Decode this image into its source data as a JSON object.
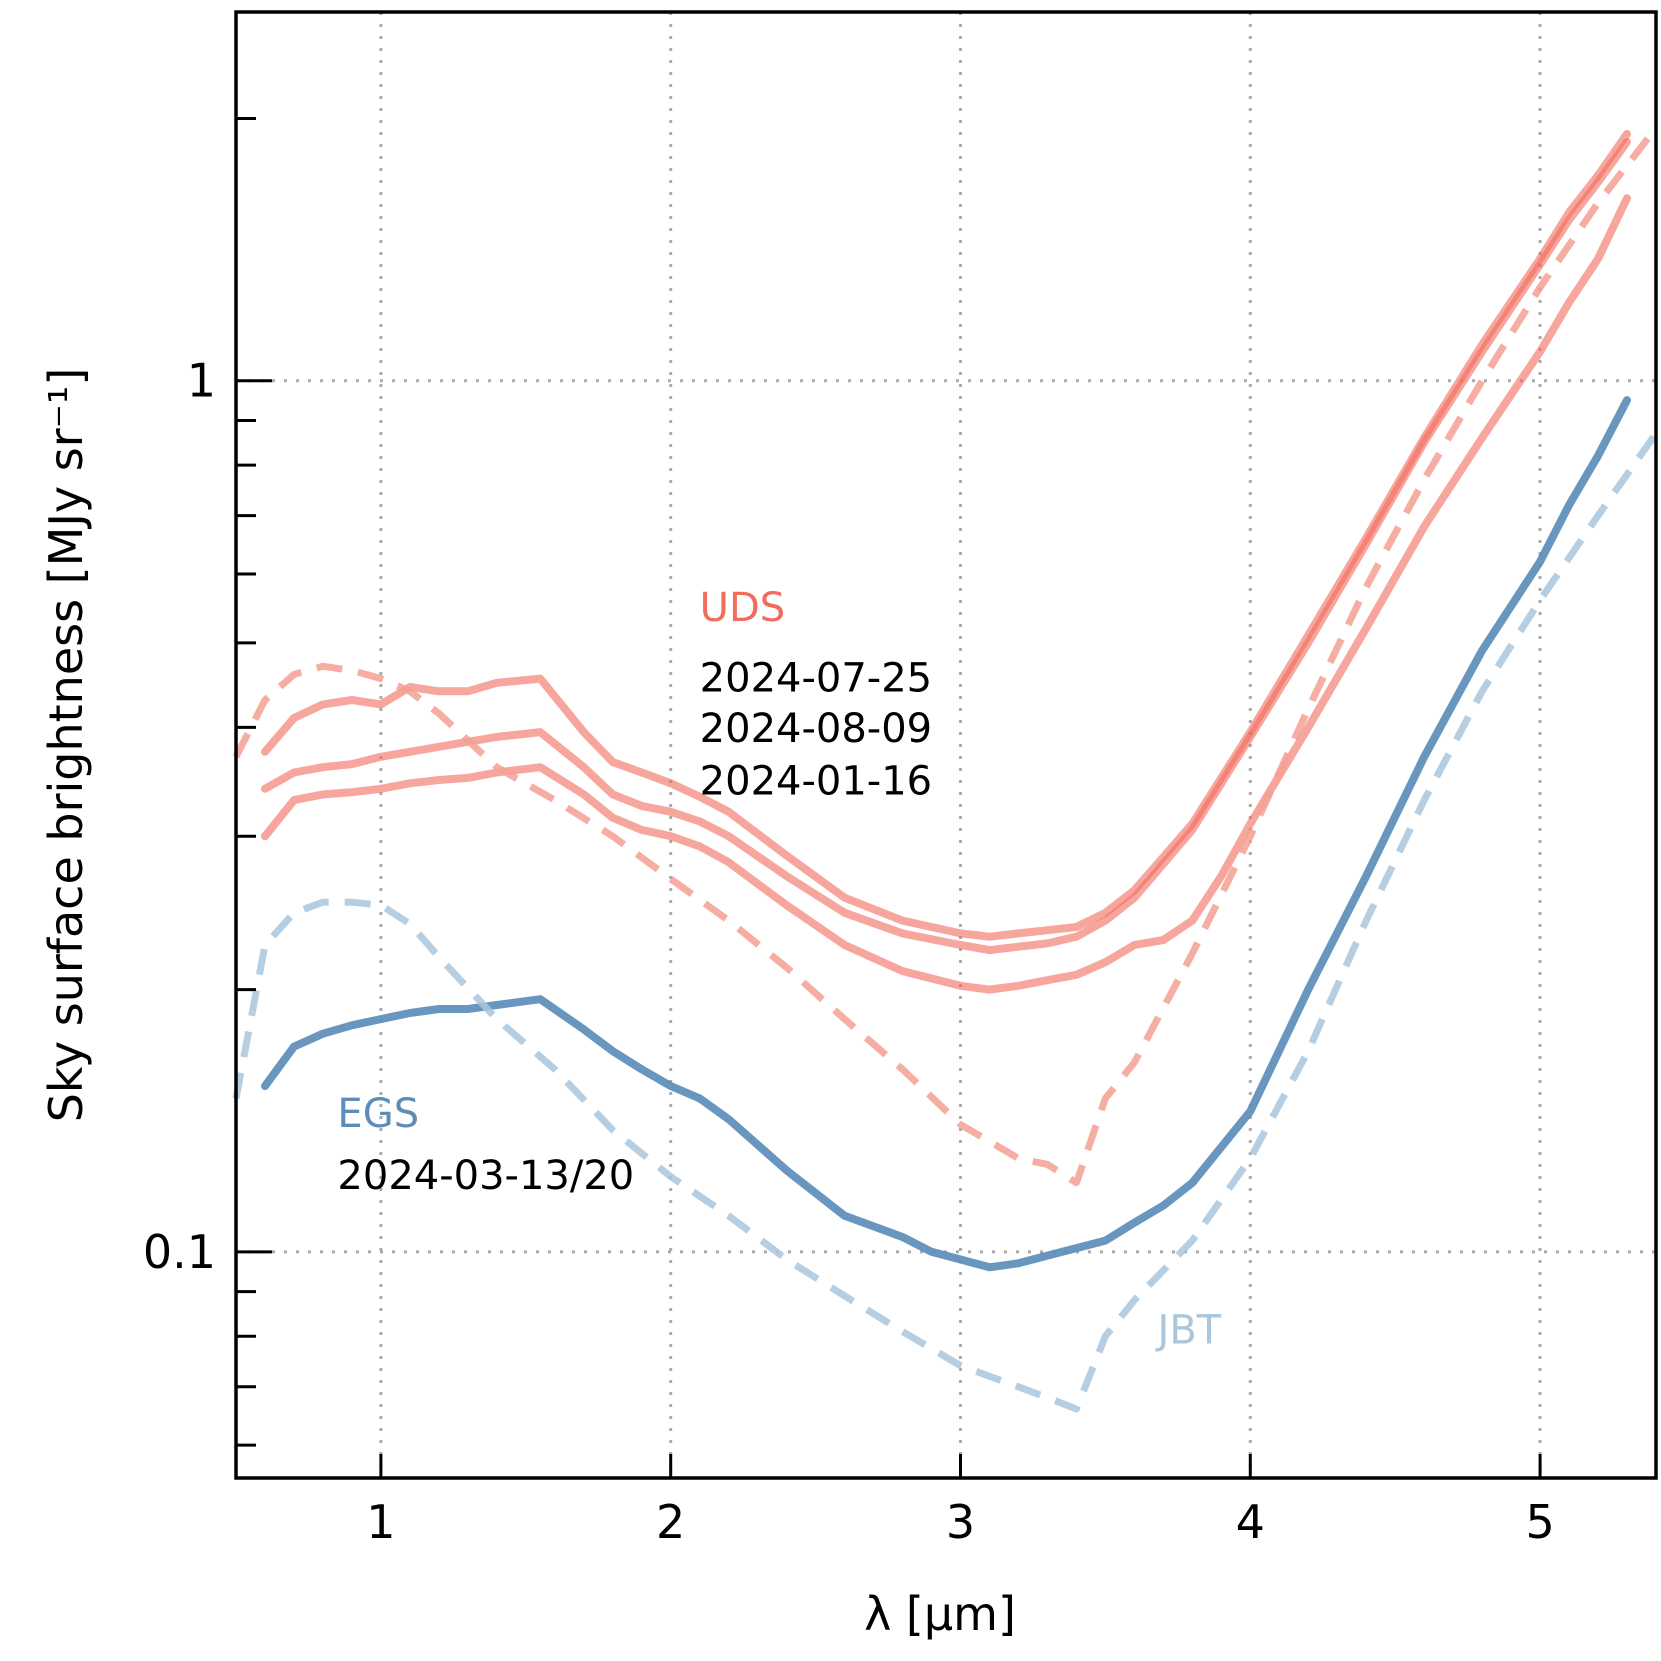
{
  "chart_data": {
    "type": "line",
    "title": "",
    "xlabel": "λ [μm]",
    "ylabel": "Sky surface brightness [MJy sr⁻¹]",
    "yscale": "log",
    "xlim": [
      0.5,
      5.4
    ],
    "ylim": [
      0.055,
      2.65
    ],
    "xticks": [
      1,
      2,
      3,
      4,
      5
    ],
    "xtick_labels": [
      "1",
      "2",
      "3",
      "4",
      "5"
    ],
    "yticks_labeled": [
      0.1,
      1
    ],
    "ytick_labels": [
      "0.1",
      "1"
    ],
    "yticks_minor": [
      0.06,
      0.07,
      0.08,
      0.09,
      0.2,
      0.3,
      0.4,
      0.5,
      0.6,
      0.7,
      0.8,
      0.9,
      2.0
    ],
    "grid": "dotted",
    "colors": {
      "uds": "#f26b5b",
      "egs": "#5b8db8",
      "uds_model": "#f5a093",
      "egs_model": "#a9c6dd"
    },
    "series": [
      {
        "name": "UDS 2024-07-25",
        "group": "uds",
        "style": "solid",
        "x": [
          0.6,
          0.7,
          0.8,
          0.9,
          1.0,
          1.1,
          1.2,
          1.3,
          1.4,
          1.55,
          1.7,
          1.8,
          1.9,
          2.0,
          2.1,
          2.2,
          2.4,
          2.6,
          2.8,
          3.0,
          3.1,
          3.2,
          3.3,
          3.4,
          3.5,
          3.6,
          3.8,
          4.0,
          4.2,
          4.4,
          4.6,
          4.8,
          5.0,
          5.1,
          5.2,
          5.3
        ],
        "y": [
          0.375,
          0.41,
          0.425,
          0.43,
          0.425,
          0.445,
          0.44,
          0.44,
          0.45,
          0.455,
          0.395,
          0.365,
          0.355,
          0.345,
          0.333,
          0.32,
          0.285,
          0.255,
          0.24,
          0.232,
          0.23,
          0.232,
          0.234,
          0.236,
          0.245,
          0.26,
          0.31,
          0.395,
          0.51,
          0.66,
          0.86,
          1.1,
          1.38,
          1.56,
          1.72,
          1.92
        ]
      },
      {
        "name": "UDS 2024-08-09",
        "group": "uds",
        "style": "solid",
        "x": [
          0.6,
          0.7,
          0.8,
          0.9,
          1.0,
          1.1,
          1.2,
          1.3,
          1.4,
          1.55,
          1.7,
          1.8,
          1.9,
          2.0,
          2.1,
          2.2,
          2.4,
          2.6,
          2.8,
          3.0,
          3.1,
          3.2,
          3.3,
          3.4,
          3.5,
          3.6,
          3.8,
          4.0,
          4.2,
          4.4,
          4.6,
          4.8,
          5.0,
          5.1,
          5.2,
          5.3
        ],
        "y": [
          0.34,
          0.355,
          0.36,
          0.363,
          0.37,
          0.375,
          0.38,
          0.385,
          0.39,
          0.395,
          0.36,
          0.335,
          0.325,
          0.32,
          0.312,
          0.3,
          0.27,
          0.245,
          0.232,
          0.225,
          0.222,
          0.224,
          0.226,
          0.23,
          0.24,
          0.255,
          0.305,
          0.39,
          0.5,
          0.65,
          0.85,
          1.08,
          1.36,
          1.53,
          1.69,
          1.88
        ]
      },
      {
        "name": "UDS 2024-01-16",
        "group": "uds",
        "style": "solid",
        "x": [
          0.6,
          0.7,
          0.8,
          0.9,
          1.0,
          1.1,
          1.2,
          1.3,
          1.4,
          1.55,
          1.7,
          1.8,
          1.9,
          2.0,
          2.1,
          2.2,
          2.4,
          2.6,
          2.8,
          3.0,
          3.1,
          3.2,
          3.3,
          3.4,
          3.5,
          3.6,
          3.7,
          3.8,
          3.9,
          4.0,
          4.2,
          4.4,
          4.6,
          4.8,
          5.0,
          5.1,
          5.2,
          5.3
        ],
        "y": [
          0.3,
          0.33,
          0.335,
          0.337,
          0.34,
          0.345,
          0.348,
          0.35,
          0.355,
          0.36,
          0.335,
          0.315,
          0.305,
          0.3,
          0.292,
          0.28,
          0.25,
          0.225,
          0.21,
          0.202,
          0.2,
          0.202,
          0.205,
          0.208,
          0.215,
          0.225,
          0.228,
          0.24,
          0.27,
          0.31,
          0.4,
          0.52,
          0.68,
          0.86,
          1.08,
          1.23,
          1.38,
          1.62
        ]
      },
      {
        "name": "EGS 2024-03-13/20",
        "group": "egs",
        "style": "solid",
        "x": [
          0.6,
          0.7,
          0.8,
          0.9,
          1.0,
          1.1,
          1.2,
          1.3,
          1.4,
          1.55,
          1.7,
          1.8,
          1.9,
          2.0,
          2.1,
          2.2,
          2.4,
          2.6,
          2.8,
          2.9,
          3.0,
          3.1,
          3.2,
          3.3,
          3.4,
          3.5,
          3.6,
          3.7,
          3.8,
          4.0,
          4.2,
          4.4,
          4.6,
          4.8,
          5.0,
          5.1,
          5.2,
          5.3
        ],
        "y": [
          0.155,
          0.172,
          0.178,
          0.182,
          0.185,
          0.188,
          0.19,
          0.19,
          0.192,
          0.195,
          0.18,
          0.17,
          0.162,
          0.155,
          0.15,
          0.142,
          0.124,
          0.11,
          0.104,
          0.1,
          0.098,
          0.096,
          0.097,
          0.099,
          0.101,
          0.103,
          0.108,
          0.113,
          0.12,
          0.145,
          0.2,
          0.27,
          0.37,
          0.49,
          0.62,
          0.72,
          0.82,
          0.95
        ]
      },
      {
        "name": "JBT UDS model",
        "group": "uds_model",
        "style": "dashed",
        "x": [
          0.5,
          0.6,
          0.7,
          0.8,
          0.9,
          1.0,
          1.1,
          1.2,
          1.4,
          1.6,
          1.8,
          2.0,
          2.2,
          2.4,
          2.6,
          2.8,
          3.0,
          3.2,
          3.3,
          3.4,
          3.5,
          3.6,
          3.8,
          4.0,
          4.2,
          4.4,
          4.6,
          4.8,
          5.0,
          5.2,
          5.4
        ],
        "y": [
          0.37,
          0.43,
          0.46,
          0.47,
          0.465,
          0.455,
          0.44,
          0.415,
          0.36,
          0.33,
          0.3,
          0.268,
          0.24,
          0.212,
          0.185,
          0.162,
          0.14,
          0.128,
          0.126,
          0.12,
          0.15,
          0.165,
          0.22,
          0.3,
          0.42,
          0.58,
          0.77,
          1.0,
          1.28,
          1.6,
          1.95
        ]
      },
      {
        "name": "JBT EGS model",
        "group": "egs_model",
        "style": "dashed",
        "x": [
          0.5,
          0.6,
          0.7,
          0.8,
          0.9,
          1.0,
          1.1,
          1.2,
          1.4,
          1.6,
          1.8,
          2.0,
          2.2,
          2.4,
          2.6,
          2.8,
          3.0,
          3.2,
          3.3,
          3.4,
          3.5,
          3.6,
          3.8,
          4.0,
          4.2,
          4.4,
          4.6,
          4.8,
          5.0,
          5.2,
          5.4
        ],
        "y": [
          0.15,
          0.225,
          0.245,
          0.252,
          0.252,
          0.25,
          0.238,
          0.218,
          0.185,
          0.162,
          0.138,
          0.122,
          0.11,
          0.098,
          0.089,
          0.081,
          0.074,
          0.07,
          0.068,
          0.066,
          0.08,
          0.088,
          0.103,
          0.128,
          0.17,
          0.24,
          0.33,
          0.44,
          0.56,
          0.7,
          0.87
        ]
      }
    ],
    "annotations": [
      {
        "text": "UDS",
        "x": 2.1,
        "y": 0.53,
        "color": "uds"
      },
      {
        "text": "2024-07-25",
        "x": 2.1,
        "y": 0.44,
        "color": "black"
      },
      {
        "text": "2024-08-09",
        "x": 2.1,
        "y": 0.385,
        "color": "black"
      },
      {
        "text": "2024-01-16",
        "x": 2.1,
        "y": 0.335,
        "color": "black"
      },
      {
        "text": "EGS",
        "x": 0.85,
        "y": 0.139,
        "color": "egs"
      },
      {
        "text": "2024-03-13/20",
        "x": 0.85,
        "y": 0.118,
        "color": "black"
      },
      {
        "text": "JBT",
        "x": 3.68,
        "y": 0.0785,
        "color": "egs_model"
      }
    ]
  }
}
